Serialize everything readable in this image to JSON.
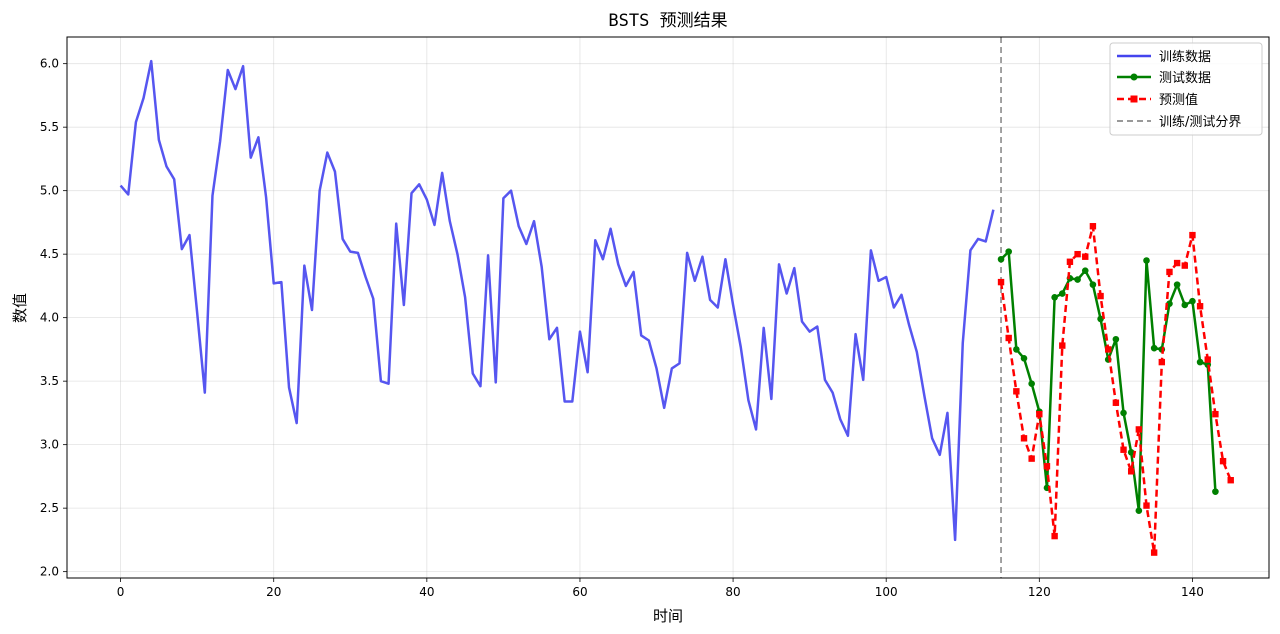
{
  "chart_data": {
    "type": "line",
    "title": "BSTS 预测结果",
    "xlabel": "时间",
    "ylabel": "数值",
    "xlim": [
      -7,
      150
    ],
    "ylim": [
      1.95,
      6.21
    ],
    "xticks": [
      0,
      20,
      40,
      60,
      80,
      100,
      120,
      140
    ],
    "yticks": [
      2.0,
      2.5,
      3.0,
      3.5,
      4.0,
      4.5,
      5.0,
      5.5,
      6.0
    ],
    "ytick_labels": [
      "2.0",
      "2.5",
      "3.0",
      "3.5",
      "4.0",
      "4.5",
      "5.0",
      "5.5",
      "6.0"
    ],
    "grid": true,
    "legend_position": "top-right",
    "split_x": 115,
    "split_label": "训练/测试分界",
    "series": [
      {
        "name": "训练数据",
        "color": "#4444ee",
        "style": "solid",
        "marker": "none",
        "x_start": 0,
        "values": [
          5.04,
          4.97,
          5.54,
          5.73,
          6.02,
          5.4,
          5.19,
          5.09,
          4.54,
          4.65,
          4.04,
          3.41,
          4.96,
          5.39,
          5.95,
          5.8,
          5.98,
          5.26,
          5.42,
          4.95,
          4.27,
          4.28,
          3.45,
          3.17,
          4.41,
          4.06,
          5.0,
          5.3,
          5.15,
          4.62,
          4.52,
          4.51,
          4.32,
          4.15,
          3.5,
          3.48,
          4.74,
          4.1,
          4.98,
          5.05,
          4.93,
          4.73,
          5.14,
          4.76,
          4.5,
          4.16,
          3.56,
          3.46,
          4.49,
          3.49,
          4.94,
          5.0,
          4.72,
          4.58,
          4.76,
          4.4,
          3.83,
          3.92,
          3.34,
          3.34,
          3.89,
          3.57,
          4.61,
          4.46,
          4.7,
          4.42,
          4.25,
          4.36,
          3.86,
          3.82,
          3.6,
          3.29,
          3.6,
          3.64,
          4.51,
          4.29,
          4.48,
          4.14,
          4.08,
          4.46,
          4.1,
          3.77,
          3.35,
          3.12,
          3.92,
          3.36,
          4.42,
          4.19,
          4.39,
          3.97,
          3.89,
          3.93,
          3.51,
          3.41,
          3.2,
          3.07,
          3.87,
          3.51,
          4.53,
          4.29,
          4.32,
          4.08,
          4.18,
          3.94,
          3.73,
          3.38,
          3.05,
          2.92,
          3.25,
          2.25,
          3.8,
          4.53,
          4.62,
          4.6,
          4.85
        ]
      },
      {
        "name": "测试数据",
        "color": "#008000",
        "style": "solid",
        "marker": "circle",
        "x_start": 115,
        "values": [
          4.46,
          4.52,
          3.75,
          3.68,
          3.48,
          3.26,
          2.66,
          4.16,
          4.19,
          4.31,
          4.3,
          4.37,
          4.26,
          3.99,
          3.67,
          3.83,
          3.25,
          2.94,
          2.48,
          4.45,
          3.76,
          3.75,
          4.11,
          4.26,
          4.1,
          4.13,
          3.65,
          3.63,
          2.63
        ]
      },
      {
        "name": "预测值",
        "color": "#ff0000",
        "style": "dashed",
        "marker": "square",
        "x_start": 115,
        "values": [
          4.28,
          3.84,
          3.42,
          3.05,
          2.89,
          3.24,
          2.83,
          2.28,
          3.78,
          4.44,
          4.5,
          4.48,
          4.72,
          4.17,
          3.75,
          3.33,
          2.96,
          2.79,
          3.12,
          2.52,
          2.15,
          3.65,
          4.36,
          4.43,
          4.41,
          4.65,
          4.09,
          3.67,
          3.24,
          2.87,
          2.72
        ]
      }
    ]
  }
}
